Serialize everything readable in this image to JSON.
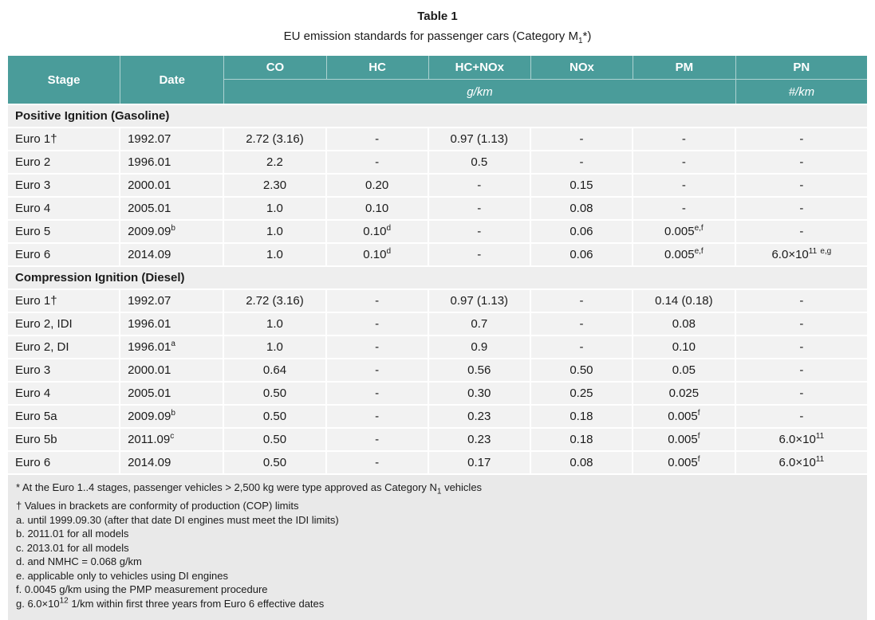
{
  "colors": {
    "header_bg": "#4a9c9a",
    "header_text": "#ffffff",
    "row_bg": "#f2f2f2",
    "section_bg": "#eeeeee",
    "footer_bg": "#e9e9e9",
    "border": "#ffffff",
    "text": "#1b1b1b"
  },
  "caption": {
    "title": "Table 1",
    "subtitle": "EU emission standards for passenger cars (Category M~{1}*)"
  },
  "table": {
    "columns": [
      "Stage",
      "Date",
      "CO",
      "HC",
      "HC+NOx",
      "NOx",
      "PM",
      "PN"
    ],
    "units": {
      "gkm": "g/km",
      "pn": "#/km"
    },
    "sections": [
      {
        "label": "Positive Ignition (Gasoline)",
        "rows": [
          {
            "stage": "Euro 1†",
            "date": "1992.07",
            "values": [
              "2.72 (3.16)",
              "-",
              "0.97 (1.13)",
              "-",
              "-",
              "-"
            ]
          },
          {
            "stage": "Euro 2",
            "date": "1996.01",
            "values": [
              "2.2",
              "-",
              "0.5",
              "-",
              "-",
              "-"
            ]
          },
          {
            "stage": "Euro 3",
            "date": "2000.01",
            "values": [
              "2.30",
              "0.20",
              "-",
              "0.15",
              "-",
              "-"
            ]
          },
          {
            "stage": "Euro 4",
            "date": "2005.01",
            "values": [
              "1.0",
              "0.10",
              "-",
              "0.08",
              "-",
              "-"
            ]
          },
          {
            "stage": "Euro 5",
            "date": "2009.09^{b}",
            "values": [
              "1.0",
              "0.10^{d}",
              "-",
              "0.06",
              "0.005^{e,f}",
              "-"
            ]
          },
          {
            "stage": "Euro 6",
            "date": "2014.09",
            "values": [
              "1.0",
              "0.10^{d}",
              "-",
              "0.06",
              "0.005^{e,f}",
              "6.0×10^{11} ^{e,g}"
            ]
          }
        ]
      },
      {
        "label": "Compression Ignition (Diesel)",
        "rows": [
          {
            "stage": "Euro 1†",
            "date": "1992.07",
            "values": [
              "2.72 (3.16)",
              "-",
              "0.97 (1.13)",
              "-",
              "0.14 (0.18)",
              "-"
            ]
          },
          {
            "stage": "Euro 2, IDI",
            "date": "1996.01",
            "values": [
              "1.0",
              "-",
              "0.7",
              "-",
              "0.08",
              "-"
            ]
          },
          {
            "stage": "Euro 2, DI",
            "date": "1996.01^{a}",
            "values": [
              "1.0",
              "-",
              "0.9",
              "-",
              "0.10",
              "-"
            ]
          },
          {
            "stage": "Euro 3",
            "date": "2000.01",
            "values": [
              "0.64",
              "-",
              "0.56",
              "0.50",
              "0.05",
              "-"
            ]
          },
          {
            "stage": "Euro 4",
            "date": "2005.01",
            "values": [
              "0.50",
              "-",
              "0.30",
              "0.25",
              "0.025",
              "-"
            ]
          },
          {
            "stage": "Euro 5a",
            "date": "2009.09^{b}",
            "values": [
              "0.50",
              "-",
              "0.23",
              "0.18",
              "0.005^{f}",
              "-"
            ]
          },
          {
            "stage": "Euro 5b",
            "date": "2011.09^{c}",
            "values": [
              "0.50",
              "-",
              "0.23",
              "0.18",
              "0.005^{f}",
              "6.0×10^{11}"
            ]
          },
          {
            "stage": "Euro 6",
            "date": "2014.09",
            "values": [
              "0.50",
              "-",
              "0.17",
              "0.08",
              "0.005^{f}",
              "6.0×10^{11}"
            ]
          }
        ]
      }
    ],
    "footnotes": [
      "* At the Euro 1..4 stages, passenger vehicles > 2,500 kg were type approved as Category N~{1} vehicles",
      "† Values in brackets are conformity of production (COP) limits",
      "a. until 1999.09.30 (after that date DI engines must meet the IDI limits)",
      "b. 2011.01 for all models",
      "c. 2013.01 for all models",
      "d. and NMHC = 0.068 g/km",
      "e. applicable only to vehicles using DI engines",
      "f. 0.0045 g/km using the PMP measurement procedure",
      "g. 6.0×10^{12} 1/km within first three years from Euro 6 effective dates"
    ]
  }
}
